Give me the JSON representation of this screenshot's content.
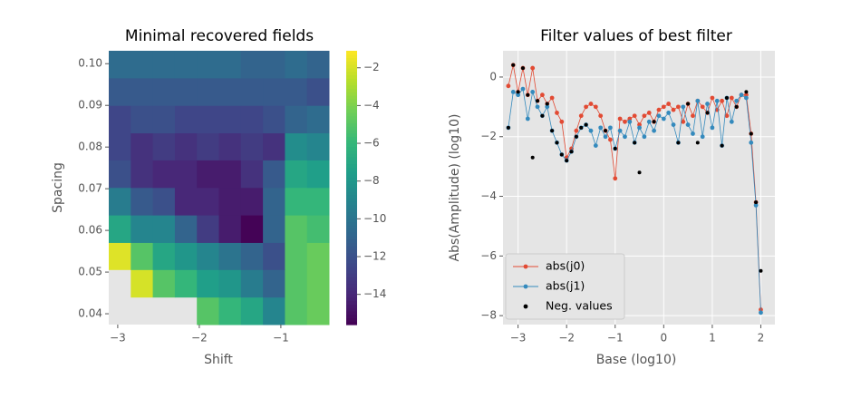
{
  "chart_data": [
    {
      "type": "heatmap",
      "title": "Minimal recovered fields",
      "xlabel": "Shift",
      "ylabel": "Spacing",
      "x_edges": [
        -3.11,
        -2.84,
        -2.57,
        -2.3,
        -2.03,
        -1.76,
        -1.49,
        -1.22,
        -0.95,
        -0.68,
        -0.41
      ],
      "y_edges": [
        0.0374,
        0.044,
        0.0506,
        0.0571,
        0.0637,
        0.0703,
        0.0769,
        0.0834,
        0.09,
        0.0966,
        0.1031
      ],
      "values": [
        [
          null,
          null,
          null,
          null,
          -5,
          -6,
          -7,
          -9,
          -5,
          -4.5
        ],
        [
          null,
          -2,
          -5,
          -6,
          -7.5,
          -8,
          -9.5,
          -11,
          -5,
          -4.5
        ],
        [
          -1.8,
          -5,
          -7,
          -8,
          -9,
          -10,
          -11,
          -12,
          -5,
          -4.5
        ],
        [
          -7,
          -9,
          -9,
          -11,
          -13,
          -14.5,
          -15.5,
          -11,
          -5,
          -5.5
        ],
        [
          -9.5,
          -11.5,
          -12,
          -14,
          -14,
          -14.5,
          -14.5,
          -11,
          -6,
          -6
        ],
        [
          -12,
          -13.5,
          -14,
          -14,
          -14.5,
          -14.5,
          -13.5,
          -11.5,
          -7,
          -7.5
        ],
        [
          -12.5,
          -13.5,
          -13,
          -13.5,
          -13,
          -13.5,
          -13,
          -13.5,
          -8.5,
          -9
        ],
        [
          -12.5,
          -12,
          -12,
          -12.5,
          -12.5,
          -12.5,
          -12.5,
          -12,
          -11,
          -10.5
        ],
        [
          -11.5,
          -11.5,
          -11.5,
          -11.5,
          -11.5,
          -11.5,
          -11.5,
          -11.5,
          -11.5,
          -12
        ],
        [
          -10.5,
          -10.5,
          -10.5,
          -10.5,
          -10.5,
          -10.5,
          -11,
          -11,
          -10.5,
          -11
        ]
      ],
      "xlim": [
        -3.11,
        -0.41
      ],
      "ylim": [
        0.0374,
        0.1031
      ],
      "xticks": [
        {
          "value": -3,
          "label": "−3"
        },
        {
          "value": -2,
          "label": "−2"
        },
        {
          "value": -1,
          "label": "−1"
        }
      ],
      "yticks": [
        0.04,
        0.05,
        0.06,
        0.07,
        0.08,
        0.09,
        {
          "value": 0.1,
          "label": "0.10"
        }
      ],
      "colormap": "viridis",
      "clim": [
        -15.6,
        -1.1
      ],
      "cticks": [
        {
          "value": -2,
          "label": "−2"
        },
        {
          "value": -4,
          "label": "−4"
        },
        {
          "value": -6,
          "label": "−6"
        },
        {
          "value": -8,
          "label": "−8"
        },
        {
          "value": -10,
          "label": "−10"
        },
        {
          "value": -12,
          "label": "−12"
        },
        {
          "value": -14,
          "label": "−14"
        }
      ]
    },
    {
      "type": "line",
      "title": "Filter values of best filter",
      "xlabel": "Base (log10)",
      "ylabel": "Abs(Amplitude) (log10)",
      "x": [
        -3.2,
        -3.1,
        -3.0,
        -2.9,
        -2.8,
        -2.7,
        -2.6,
        -2.5,
        -2.4,
        -2.3,
        -2.2,
        -2.1,
        -2.0,
        -1.9,
        -1.8,
        -1.7,
        -1.6,
        -1.5,
        -1.4,
        -1.3,
        -1.2,
        -1.1,
        -1.0,
        -0.9,
        -0.8,
        -0.7,
        -0.6,
        -0.5,
        -0.4,
        -0.3,
        -0.2,
        -0.1,
        0.0,
        0.1,
        0.2,
        0.3,
        0.4,
        0.5,
        0.6,
        0.7,
        0.8,
        0.9,
        1.0,
        1.1,
        1.2,
        1.3,
        1.4,
        1.5,
        1.6,
        1.7,
        1.8,
        1.9,
        2.0
      ],
      "series": [
        {
          "name": "abs(j0)",
          "color": "#E24A33",
          "values": [
            -0.3,
            0.4,
            -0.5,
            0.3,
            -0.6,
            0.3,
            -0.8,
            -0.6,
            -0.9,
            -0.7,
            -1.2,
            -1.5,
            -2.7,
            -2.4,
            -1.8,
            -1.3,
            -1.0,
            -0.9,
            -1.0,
            -1.3,
            -1.8,
            -2.1,
            -3.4,
            -1.4,
            -1.5,
            -1.4,
            -1.3,
            -1.6,
            -1.3,
            -1.2,
            -1.5,
            -1.1,
            -1.0,
            -0.9,
            -1.1,
            -1.0,
            -1.5,
            -0.9,
            -1.3,
            -0.8,
            -1.0,
            -1.2,
            -0.7,
            -1.1,
            -0.8,
            -1.3,
            -0.7,
            -1.0,
            -0.6,
            -0.6,
            -1.9,
            -4.2,
            -7.8
          ]
        },
        {
          "name": "abs(j1)",
          "color": "#348ABD",
          "values": [
            -1.7,
            -0.5,
            -0.6,
            -0.4,
            -1.4,
            -0.5,
            -1.0,
            -1.3,
            -1.0,
            -1.8,
            -2.2,
            -2.6,
            -2.8,
            -2.5,
            -2.0,
            -1.7,
            -1.6,
            -1.8,
            -2.3,
            -1.7,
            -2.0,
            -1.7,
            -2.4,
            -1.8,
            -2.0,
            -1.5,
            -2.2,
            -1.7,
            -2.0,
            -1.5,
            -1.8,
            -1.3,
            -1.4,
            -1.2,
            -1.6,
            -2.2,
            -1.0,
            -1.6,
            -1.9,
            -0.8,
            -2.0,
            -0.9,
            -1.7,
            -0.8,
            -2.3,
            -0.7,
            -1.5,
            -0.8,
            -0.6,
            -0.7,
            -2.2,
            -4.3,
            -7.9
          ]
        },
        {
          "name": "Neg. values",
          "color": "#000000",
          "marker_only": true,
          "x": [
            -3.2,
            -3.1,
            -3.0,
            -2.9,
            -2.8,
            -2.7,
            -2.6,
            -2.5,
            -2.4,
            -2.3,
            -2.2,
            -2.1,
            -2.0,
            -1.9,
            -1.8,
            -1.7,
            -1.6,
            -1.2,
            -1.0,
            -0.6,
            -0.5,
            -0.2,
            0.3,
            0.5,
            0.7,
            0.9,
            1.2,
            1.3,
            1.5,
            1.7,
            1.8,
            1.9,
            2.0
          ],
          "values": [
            -1.7,
            0.4,
            -0.5,
            0.3,
            -0.6,
            -2.7,
            -0.8,
            -1.3,
            -0.9,
            -1.8,
            -2.2,
            -2.6,
            -2.8,
            -2.5,
            -2.0,
            -1.7,
            -1.6,
            -1.8,
            -2.4,
            -2.2,
            -3.2,
            -1.5,
            -2.2,
            -0.9,
            -2.2,
            -1.2,
            -2.3,
            -0.7,
            -1.0,
            -0.5,
            -1.9,
            -4.2,
            -6.5
          ]
        }
      ],
      "xlim": [
        -3.31,
        2.29
      ],
      "ylim": [
        -8.3,
        0.88
      ],
      "xticks": [
        {
          "value": -3,
          "label": "−3"
        },
        {
          "value": -2,
          "label": "−2"
        },
        {
          "value": -1,
          "label": "−1"
        },
        0,
        1,
        2
      ],
      "yticks": [
        {
          "value": -8,
          "label": "−8"
        },
        {
          "value": -6,
          "label": "−6"
        },
        {
          "value": -4,
          "label": "−4"
        },
        {
          "value": -2,
          "label": "−2"
        },
        0
      ],
      "grid": true,
      "legend": "lower left"
    }
  ]
}
